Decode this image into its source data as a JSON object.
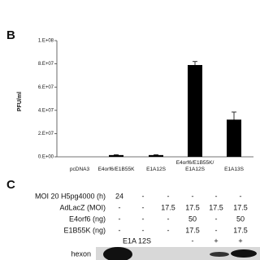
{
  "chart_data": {
    "type": "bar",
    "panel": "B",
    "y_label": "PFU/ml",
    "categories": [
      "pcDNA3",
      "E4orf6/E1B55K",
      "E1A12S",
      "E4orf6/E1B55K/\nE1A12S",
      "E1A13S"
    ],
    "values": [
      0,
      1500000,
      1500000,
      79000000,
      32000000
    ],
    "errors": [
      0,
      300000,
      300000,
      3000000,
      6500000
    ],
    "color": "#000000",
    "ylim": [
      0,
      100000000
    ],
    "yticks": [
      {
        "value": 0,
        "label": "0.E+00"
      },
      {
        "value": 20000000,
        "label": "2.E+07"
      },
      {
        "value": 40000000,
        "label": "4.E+07"
      },
      {
        "value": 60000000,
        "label": "6.E+07"
      },
      {
        "value": 80000000,
        "label": "8.E+07"
      },
      {
        "value": 100000000,
        "label": "1.E+08"
      }
    ]
  },
  "panel_c": {
    "panel": "C",
    "rows": [
      {
        "label": "MOI 20 H5pg4000 (h)",
        "cells": [
          "24",
          "-",
          "-",
          "-",
          "-",
          "-"
        ]
      },
      {
        "label": "AdLacZ (MOI)",
        "cells": [
          "-",
          "-",
          "17.5",
          "17.5",
          "17.5",
          "17.5"
        ]
      },
      {
        "label": "E4orf6 (ng)",
        "cells": [
          "-",
          "-",
          "-",
          "50",
          "-",
          "50"
        ]
      },
      {
        "label": "E1B55K (ng)",
        "cells": [
          "-",
          "-",
          "-",
          "17.5",
          "-",
          "17.5"
        ]
      },
      {
        "label": "E1A 12S",
        "cells": [
          "-",
          "+",
          "+"
        ]
      }
    ],
    "blot_label": "hexon"
  }
}
